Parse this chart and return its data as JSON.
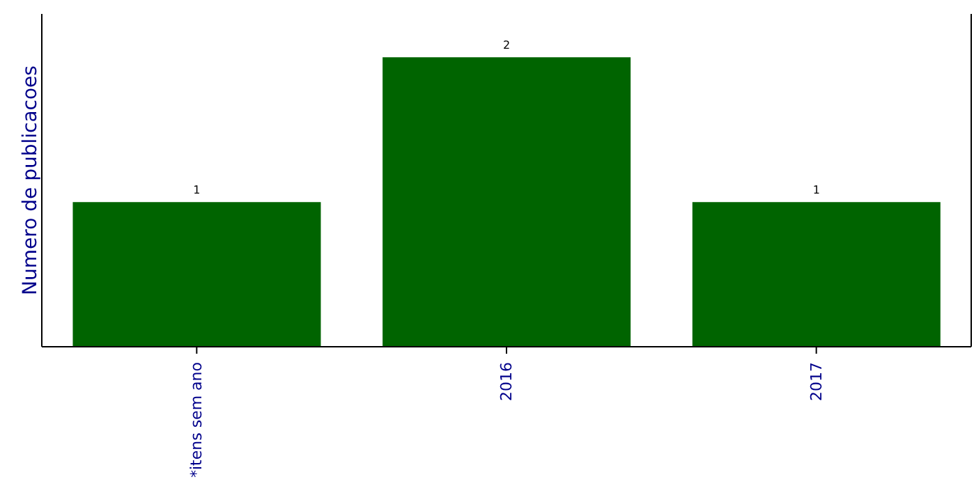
{
  "chart_data": {
    "type": "bar",
    "ylabel": "Numero de publicacoes",
    "categories": [
      "*itens sem ano",
      "2016",
      "2017"
    ],
    "values": [
      1,
      2,
      1
    ],
    "color": "#006400",
    "ylim": [
      0,
      2.3
    ],
    "tick_labels": "x",
    "data_labels": true,
    "grid": false,
    "legend": false
  }
}
